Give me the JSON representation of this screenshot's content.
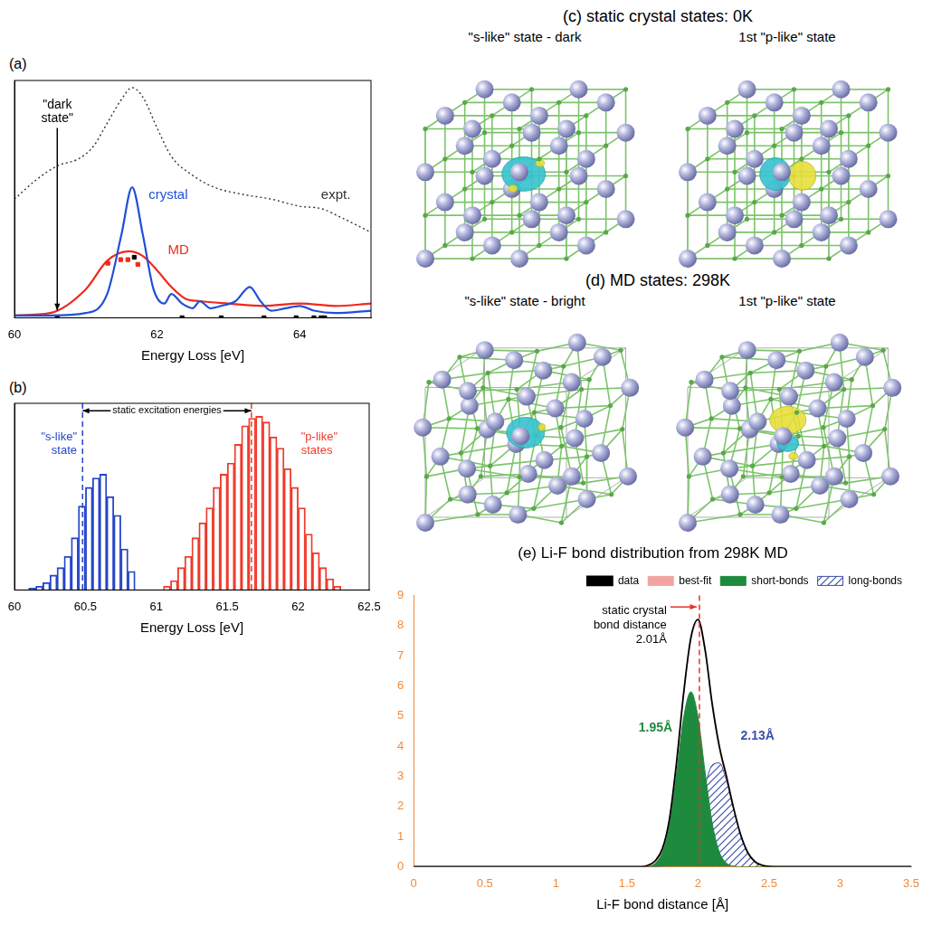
{
  "chart_data": [
    {
      "panel": "(a)",
      "type": "line",
      "x_label": "Energy Loss [eV]",
      "xlim": [
        60,
        65
      ],
      "xticks": [
        60,
        62,
        64
      ],
      "ylim": [
        0,
        1
      ],
      "tick_labels": "x",
      "grid": false,
      "series": [
        {
          "name": "expt.",
          "color": "#333333",
          "line_style": "dotted",
          "x": [
            60,
            60.3,
            60.6,
            60.9,
            61.1,
            61.3,
            61.5,
            61.65,
            61.8,
            62.0,
            62.2,
            62.5,
            62.8,
            63.2,
            63.6,
            64.0,
            64.3,
            64.6,
            65
          ],
          "values": [
            0.5,
            0.58,
            0.64,
            0.67,
            0.72,
            0.82,
            0.92,
            0.97,
            0.93,
            0.8,
            0.68,
            0.6,
            0.55,
            0.52,
            0.5,
            0.47,
            0.46,
            0.42,
            0.36
          ]
        },
        {
          "name": "crystal",
          "color": "#1f4fd8",
          "line_style": "solid",
          "x": [
            60,
            60.5,
            61.0,
            61.3,
            61.5,
            61.65,
            61.8,
            61.95,
            62.1,
            62.2,
            62.35,
            62.5,
            62.6,
            62.75,
            62.9,
            63.1,
            63.3,
            63.45,
            63.6,
            63.8,
            64.0,
            64.2,
            64.5,
            65
          ],
          "values": [
            0.01,
            0.01,
            0.02,
            0.1,
            0.35,
            0.55,
            0.35,
            0.12,
            0.06,
            0.1,
            0.06,
            0.04,
            0.07,
            0.04,
            0.05,
            0.07,
            0.13,
            0.07,
            0.03,
            0.04,
            0.05,
            0.03,
            0.02,
            0.03
          ]
        },
        {
          "name": "MD",
          "color": "#ee2a1c",
          "line_style": "solid",
          "x": [
            60,
            60.5,
            61.0,
            61.3,
            61.6,
            61.8,
            62.0,
            62.2,
            62.4,
            62.6,
            63.0,
            63.5,
            64.0,
            64.5,
            65
          ],
          "values": [
            0.01,
            0.02,
            0.12,
            0.24,
            0.28,
            0.26,
            0.2,
            0.13,
            0.08,
            0.07,
            0.06,
            0.05,
            0.06,
            0.05,
            0.06
          ]
        },
        {
          "type": "scatter",
          "marker": "square",
          "color": "#ee2a1c",
          "x": [
            61.31,
            61.49,
            61.59,
            61.73
          ],
          "values": [
            0.23,
            0.245,
            0.245,
            0.225
          ]
        },
        {
          "type": "scatter",
          "marker": "square",
          "color": "#000000",
          "x": [
            60.6,
            61.68,
            62.35,
            62.9,
            63.5,
            63.95,
            64.2,
            64.3,
            64.35
          ],
          "values": [
            0,
            0.255,
            0,
            0,
            0,
            0,
            0,
            0,
            0
          ]
        }
      ],
      "annotations": [
        {
          "text": "\"dark state\"",
          "x": 60.6,
          "y": 0.02
        }
      ]
    },
    {
      "panel": "(b)",
      "type": "histogram",
      "x_label": "Energy Loss [eV]",
      "xlim": [
        60,
        62.5
      ],
      "xticks": [
        60,
        60.5,
        61,
        61.5,
        62,
        62.5
      ],
      "ylim": [
        0,
        100
      ],
      "tick_labels": "x",
      "grid": false,
      "bins": [
        60.1,
        60.15,
        60.2,
        60.25,
        60.3,
        60.35,
        60.4,
        60.45,
        60.5,
        60.55,
        60.6,
        60.65,
        60.7,
        60.75,
        60.8,
        60.85,
        60.9,
        60.95,
        61,
        61.05,
        61.1,
        61.15,
        61.2,
        61.25,
        61.3,
        61.35,
        61.4,
        61.45,
        61.5,
        61.55,
        61.6,
        61.65,
        61.7,
        61.75,
        61.8,
        61.85,
        61.9,
        61.95,
        62,
        62.05,
        62.1,
        62.15,
        62.2,
        62.25,
        62.3
      ],
      "series": [
        {
          "name": "\"s-like\" state",
          "color": "#2545c8",
          "values": [
            1,
            2,
            4,
            8,
            12,
            18,
            28,
            45,
            55,
            60,
            62,
            50,
            40,
            22,
            10,
            0,
            0,
            0,
            0,
            0,
            0,
            0,
            0,
            0,
            0,
            0,
            0,
            0,
            0,
            0,
            0,
            0,
            0,
            0,
            0,
            0,
            0,
            0,
            0,
            0,
            0,
            0,
            0,
            0
          ]
        },
        {
          "name": "\"p-like\" states",
          "color": "#ee3b2b",
          "values": [
            0,
            0,
            0,
            0,
            0,
            0,
            0,
            0,
            0,
            0,
            0,
            0,
            0,
            0,
            0,
            0,
            0,
            0,
            0,
            2,
            5,
            12,
            18,
            28,
            36,
            44,
            55,
            62,
            68,
            78,
            88,
            92,
            93,
            90,
            82,
            76,
            65,
            55,
            44,
            30,
            20,
            12,
            6,
            2
          ]
        }
      ],
      "reference_lines": [
        {
          "x": 60.48,
          "color": "#2545c8",
          "line_style": "dashed"
        },
        {
          "x": 61.67,
          "color": "#ee3b2b",
          "line_style": "dashed"
        }
      ],
      "annotations": [
        {
          "text": "static excitation energies",
          "x": [
            60.48,
            61.67
          ]
        }
      ]
    },
    {
      "panel": "(e)",
      "type": "line",
      "title": "Li-F bond distribution from 298K MD",
      "x_label": "Li-F bond distance [Å]",
      "xlim": [
        0,
        3.5
      ],
      "xticks": [
        0,
        0.5,
        1,
        1.5,
        2,
        2.5,
        3,
        3.5
      ],
      "ylim": [
        0,
        9
      ],
      "yticks": [
        0,
        1,
        2,
        3,
        4,
        5,
        6,
        7,
        8,
        9
      ],
      "grid": false,
      "legend": "top right",
      "x": [
        0,
        1.6,
        1.65,
        1.7,
        1.75,
        1.8,
        1.85,
        1.9,
        1.95,
        2.0,
        2.05,
        2.1,
        2.15,
        2.2,
        2.25,
        2.3,
        2.35,
        2.4,
        2.45,
        2.5,
        2.6,
        3.5
      ],
      "series": [
        {
          "name": "data",
          "color": "#000000",
          "type": "line",
          "values": [
            0,
            0,
            0.05,
            0.2,
            0.6,
            1.6,
            3.5,
            5.8,
            7.6,
            8.2,
            7.2,
            5.4,
            4.0,
            3.0,
            1.95,
            1.06,
            0.47,
            0.17,
            0.05,
            0.01,
            0,
            0
          ]
        },
        {
          "name": "best-fit",
          "color": "#f4a3a3",
          "type": "line",
          "values": [
            0,
            0,
            0.03,
            0.15,
            0.55,
            1.55,
            3.4,
            5.7,
            7.5,
            8.1,
            7.1,
            5.3,
            3.9,
            2.9,
            1.95,
            1.06,
            0.47,
            0.17,
            0.05,
            0.01,
            0,
            0
          ]
        },
        {
          "name": "short-bonds",
          "color": "#1e8a3e",
          "type": "area",
          "peak": 1.95,
          "peak_label": "1.95Å",
          "values": [
            0,
            0,
            0.02,
            0.12,
            0.49,
            1.45,
            3.13,
            4.97,
            5.8,
            4.97,
            3.13,
            1.45,
            0.49,
            0.12,
            0.02,
            0,
            0,
            0,
            0,
            0,
            0,
            0
          ]
        },
        {
          "name": "long-bonds",
          "color": "#3b4fa8",
          "type": "hatched_area",
          "peak": 2.13,
          "peak_label": "2.13Å",
          "values": [
            0,
            0,
            0,
            0,
            0.01,
            0.04,
            0.14,
            0.39,
            0.92,
            1.74,
            2.69,
            3.37,
            3.44,
            2.86,
            1.93,
            1.06,
            0.47,
            0.17,
            0.05,
            0.01,
            0,
            0
          ]
        }
      ],
      "reference_lines": [
        {
          "x": 2.01,
          "color": "#e8322a",
          "line_style": "dashed",
          "label": "static crystal bond distance",
          "value_label": "2.01Å"
        }
      ]
    }
  ],
  "structures": [
    {
      "panel": "(c)",
      "title": "static crystal states: 0K",
      "states": [
        "\"s-like\" state - dark",
        "1st \"p-like\" state"
      ]
    },
    {
      "panel": "(d)",
      "title": "MD states: 298K",
      "states": [
        "\"s-like\" state - bright",
        "1st \"p-like\" state"
      ]
    }
  ]
}
